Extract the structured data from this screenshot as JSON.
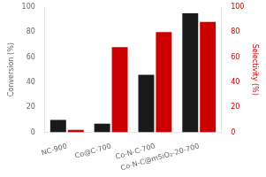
{
  "chart_data": {
    "type": "bar",
    "categories": [
      "NC-900",
      "Co@C-700",
      "Co-N-C-700",
      "Co-N-C@mSiO₂-20-700"
    ],
    "series": [
      {
        "color": "#1a1a1a",
        "values": [
          10,
          7,
          46,
          95
        ]
      },
      {
        "color": "#cc0000",
        "values": [
          2,
          68,
          80,
          88
        ],
        "axis": "y2"
      }
    ],
    "ylabel": "Conversion (%)",
    "y2label": "Selectivity (%)",
    "ylim": [
      0,
      100
    ],
    "yticks": [
      0,
      20,
      40,
      60,
      80,
      100
    ],
    "y2lim": [
      0,
      100
    ],
    "y2ticks": [
      0,
      20,
      40,
      60,
      80,
      100
    ],
    "grid": false
  }
}
